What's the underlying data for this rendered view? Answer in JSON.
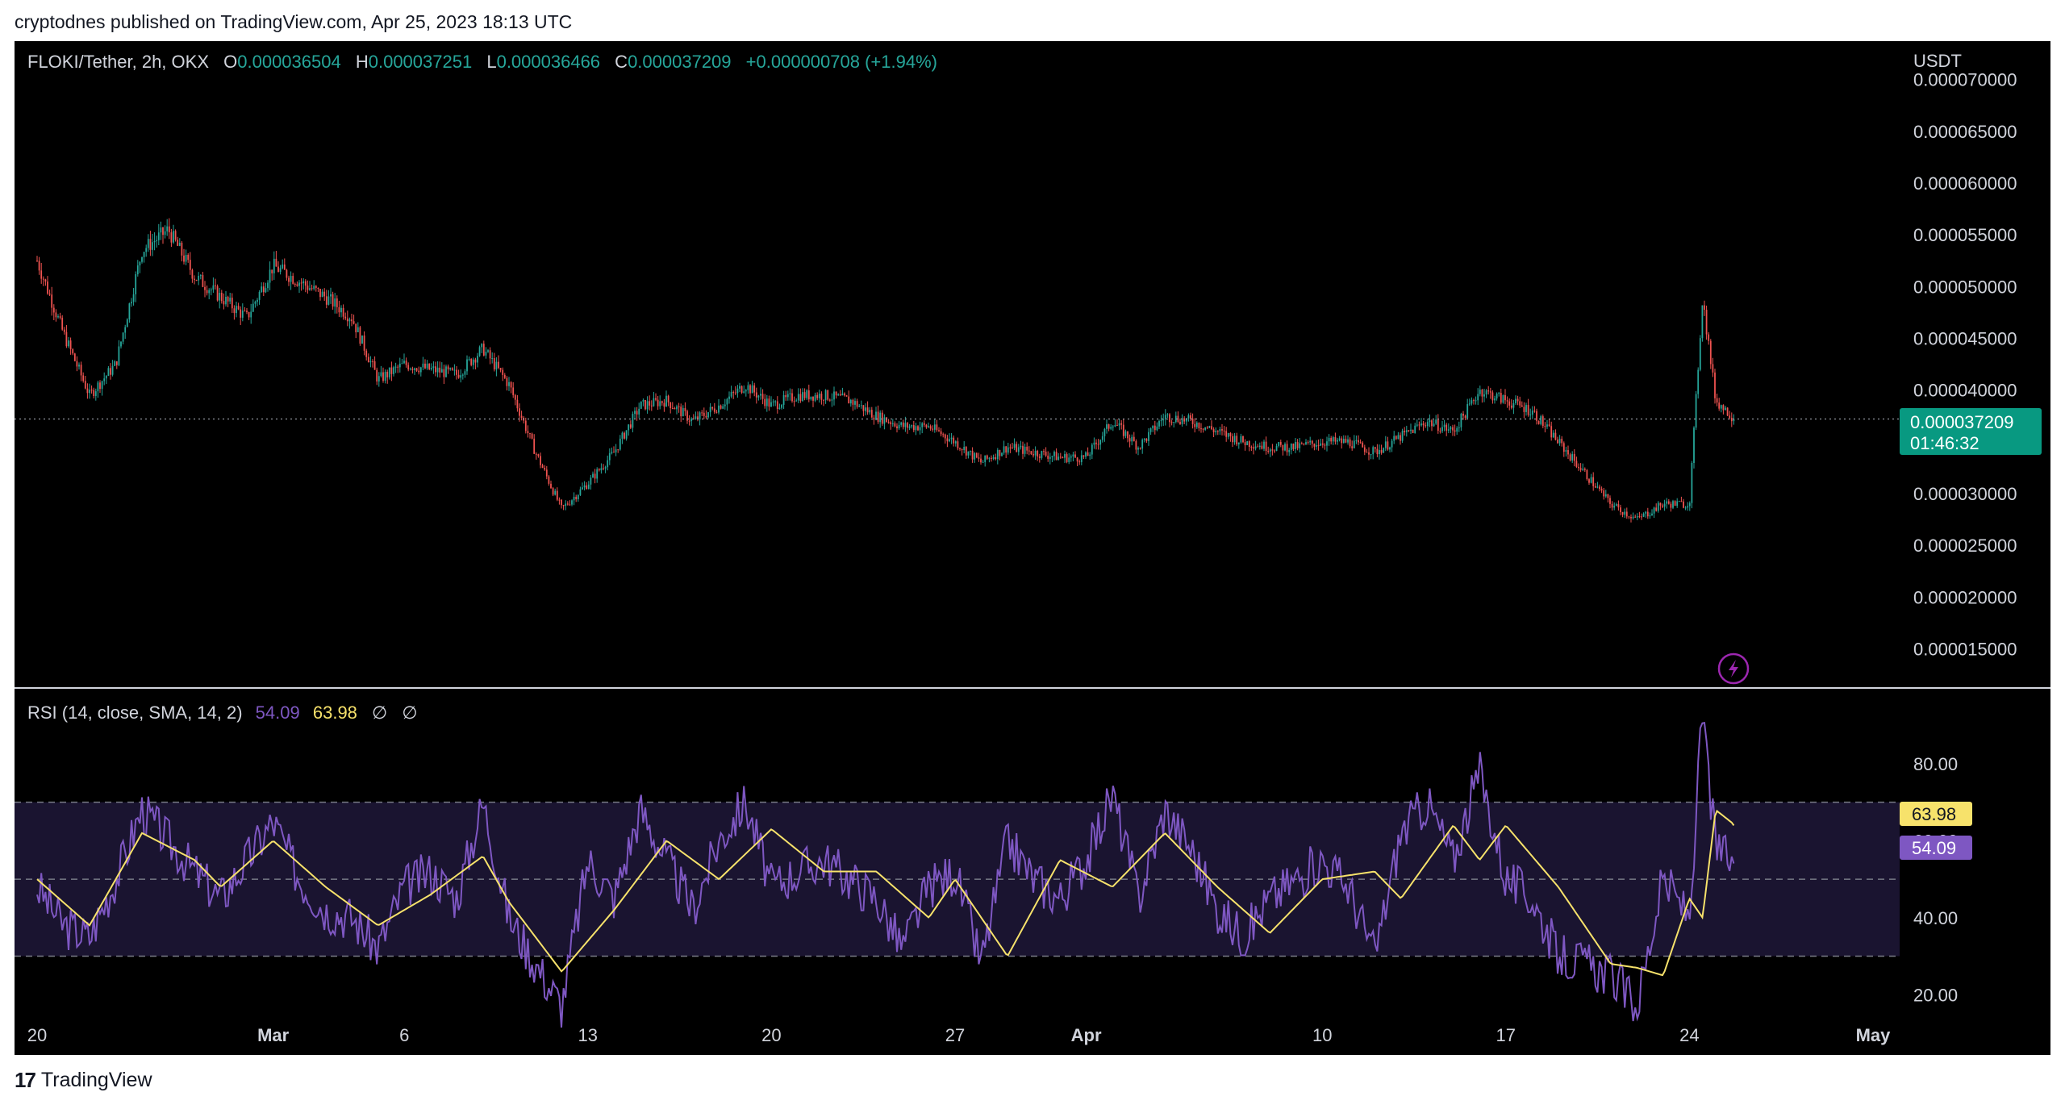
{
  "header": {
    "published_text": "cryptodnes published on TradingView.com, Apr 25, 2023 18:13 UTC"
  },
  "legend": {
    "symbol": "FLOKI/Tether, 2h, OKX",
    "o_label": "O",
    "o_value": "0.000036504",
    "h_label": "H",
    "h_value": "0.000037251",
    "l_label": "L",
    "l_value": "0.000036466",
    "c_label": "C",
    "c_value": "0.000037209",
    "change": "+0.000000708 (+1.94%)"
  },
  "rsi_legend": {
    "label": "RSI (14, close, SMA, 14, 2)",
    "rsi_value": "54.09",
    "sma_value": "63.98",
    "sym1": "∅",
    "sym2": "∅"
  },
  "price_axis": {
    "currency": "USDT",
    "ticks": [
      "0.000070000",
      "0.000065000",
      "0.000060000",
      "0.000055000",
      "0.000050000",
      "0.000045000",
      "0.000040000",
      "0.000030000",
      "0.000025000",
      "0.000020000",
      "0.000015000"
    ],
    "last_price": "0.000037209",
    "countdown": "01:46:32"
  },
  "rsi_axis": {
    "ticks": [
      "80.00",
      "60.00",
      "40.00",
      "20.00"
    ],
    "sma_badge": "63.98",
    "rsi_badge": "54.09"
  },
  "time_axis": {
    "labels": [
      {
        "text": "20",
        "bold": false
      },
      {
        "text": "Mar",
        "bold": true
      },
      {
        "text": "6",
        "bold": false
      },
      {
        "text": "13",
        "bold": false
      },
      {
        "text": "20",
        "bold": false
      },
      {
        "text": "27",
        "bold": false
      },
      {
        "text": "Apr",
        "bold": true
      },
      {
        "text": "10",
        "bold": false
      },
      {
        "text": "17",
        "bold": false
      },
      {
        "text": "24",
        "bold": false
      },
      {
        "text": "May",
        "bold": true
      }
    ]
  },
  "footer": {
    "brand": "TradingView"
  },
  "colors": {
    "up": "#26a69a",
    "down": "#ef5350",
    "rsi": "#7e57c2",
    "sma": "#f7e26b",
    "badge": "#089981"
  },
  "chart_data": [
    {
      "type": "candlestick",
      "title": "FLOKI/Tether, 2h, OKX",
      "ylabel": "USDT",
      "ylim": [
        1.2e-05,
        7.2e-05
      ],
      "x_range": [
        "2023-02-20",
        "2023-05-01"
      ],
      "last_close": 3.7209e-05,
      "path_points": [
        {
          "date": "2023-02-20",
          "price": 5.25e-05
        },
        {
          "date": "2023-02-21",
          "price": 4.55e-05
        },
        {
          "date": "2023-02-22",
          "price": 3.95e-05
        },
        {
          "date": "2023-02-23",
          "price": 4.25e-05
        },
        {
          "date": "2023-02-24",
          "price": 5.35e-05
        },
        {
          "date": "2023-02-25",
          "price": 5.55e-05
        },
        {
          "date": "2023-02-26",
          "price": 5.1e-05
        },
        {
          "date": "2023-02-27",
          "price": 4.9e-05
        },
        {
          "date": "2023-02-28",
          "price": 4.7e-05
        },
        {
          "date": "2023-03-01",
          "price": 5.2e-05
        },
        {
          "date": "2023-03-02",
          "price": 5.05e-05
        },
        {
          "date": "2023-03-03",
          "price": 4.9e-05
        },
        {
          "date": "2023-03-04",
          "price": 4.7e-05
        },
        {
          "date": "2023-03-05",
          "price": 4.1e-05
        },
        {
          "date": "2023-03-06",
          "price": 4.25e-05
        },
        {
          "date": "2023-03-07",
          "price": 4.2e-05
        },
        {
          "date": "2023-03-08",
          "price": 4.15e-05
        },
        {
          "date": "2023-03-09",
          "price": 4.4e-05
        },
        {
          "date": "2023-03-10",
          "price": 4.05e-05
        },
        {
          "date": "2023-03-11",
          "price": 3.4e-05
        },
        {
          "date": "2023-03-12",
          "price": 2.85e-05
        },
        {
          "date": "2023-03-13",
          "price": 3.1e-05
        },
        {
          "date": "2023-03-14",
          "price": 3.4e-05
        },
        {
          "date": "2023-03-15",
          "price": 3.85e-05
        },
        {
          "date": "2023-03-16",
          "price": 3.9e-05
        },
        {
          "date": "2023-03-17",
          "price": 3.7e-05
        },
        {
          "date": "2023-03-18",
          "price": 3.85e-05
        },
        {
          "date": "2023-03-19",
          "price": 4.05e-05
        },
        {
          "date": "2023-03-20",
          "price": 3.85e-05
        },
        {
          "date": "2023-03-21",
          "price": 3.95e-05
        },
        {
          "date": "2023-03-22",
          "price": 3.95e-05
        },
        {
          "date": "2023-03-23",
          "price": 3.9e-05
        },
        {
          "date": "2023-03-24",
          "price": 3.75e-05
        },
        {
          "date": "2023-03-25",
          "price": 3.65e-05
        },
        {
          "date": "2023-03-26",
          "price": 3.65e-05
        },
        {
          "date": "2023-03-27",
          "price": 3.5e-05
        },
        {
          "date": "2023-03-28",
          "price": 3.3e-05
        },
        {
          "date": "2023-03-29",
          "price": 3.45e-05
        },
        {
          "date": "2023-03-30",
          "price": 3.4e-05
        },
        {
          "date": "2023-03-31",
          "price": 3.35e-05
        },
        {
          "date": "2023-04-01",
          "price": 3.35e-05
        },
        {
          "date": "2023-04-02",
          "price": 3.7e-05
        },
        {
          "date": "2023-04-03",
          "price": 3.45e-05
        },
        {
          "date": "2023-04-04",
          "price": 3.75e-05
        },
        {
          "date": "2023-04-05",
          "price": 3.7e-05
        },
        {
          "date": "2023-04-06",
          "price": 3.6e-05
        },
        {
          "date": "2023-04-07",
          "price": 3.5e-05
        },
        {
          "date": "2023-04-08",
          "price": 3.45e-05
        },
        {
          "date": "2023-04-09",
          "price": 3.45e-05
        },
        {
          "date": "2023-04-10",
          "price": 3.5e-05
        },
        {
          "date": "2023-04-11",
          "price": 3.5e-05
        },
        {
          "date": "2023-04-12",
          "price": 3.4e-05
        },
        {
          "date": "2023-04-13",
          "price": 3.55e-05
        },
        {
          "date": "2023-04-14",
          "price": 3.7e-05
        },
        {
          "date": "2023-04-15",
          "price": 3.6e-05
        },
        {
          "date": "2023-04-16",
          "price": 4e-05
        },
        {
          "date": "2023-04-17",
          "price": 3.9e-05
        },
        {
          "date": "2023-04-18",
          "price": 3.8e-05
        },
        {
          "date": "2023-04-19",
          "price": 3.5e-05
        },
        {
          "date": "2023-04-20",
          "price": 3.2e-05
        },
        {
          "date": "2023-04-21",
          "price": 2.9e-05
        },
        {
          "date": "2023-04-22",
          "price": 2.75e-05
        },
        {
          "date": "2023-04-23",
          "price": 2.9e-05
        },
        {
          "date": "2023-04-24",
          "price": 2.9e-05
        },
        {
          "date": "2023-04-24T12:00",
          "price": 4.9e-05
        },
        {
          "date": "2023-04-25",
          "price": 3.9e-05
        },
        {
          "date": "2023-04-25T18:00",
          "price": 3.72e-05
        }
      ]
    },
    {
      "type": "line",
      "title": "RSI (14, close, SMA, 14, 2)",
      "ylim": [
        10,
        98
      ],
      "bands": [
        70,
        50,
        30
      ],
      "series": [
        {
          "name": "RSI",
          "last": 54.09,
          "points": [
            {
              "date": "2023-02-20",
              "v": 48
            },
            {
              "date": "2023-02-21",
              "v": 38
            },
            {
              "date": "2023-02-22",
              "v": 35
            },
            {
              "date": "2023-02-23",
              "v": 50
            },
            {
              "date": "2023-02-24",
              "v": 68
            },
            {
              "date": "2023-02-25",
              "v": 60
            },
            {
              "date": "2023-02-26",
              "v": 52
            },
            {
              "date": "2023-02-27",
              "v": 45
            },
            {
              "date": "2023-02-28",
              "v": 55
            },
            {
              "date": "2023-03-01",
              "v": 65
            },
            {
              "date": "2023-03-02",
              "v": 50
            },
            {
              "date": "2023-03-03",
              "v": 42
            },
            {
              "date": "2023-03-04",
              "v": 40
            },
            {
              "date": "2023-03-05",
              "v": 32
            },
            {
              "date": "2023-03-06",
              "v": 48
            },
            {
              "date": "2023-03-07",
              "v": 52
            },
            {
              "date": "2023-03-08",
              "v": 45
            },
            {
              "date": "2023-03-09",
              "v": 70
            },
            {
              "date": "2023-03-10",
              "v": 40
            },
            {
              "date": "2023-03-11",
              "v": 28
            },
            {
              "date": "2023-03-12",
              "v": 17
            },
            {
              "date": "2023-03-13",
              "v": 55
            },
            {
              "date": "2023-03-14",
              "v": 45
            },
            {
              "date": "2023-03-15",
              "v": 68
            },
            {
              "date": "2023-03-16",
              "v": 55
            },
            {
              "date": "2023-03-17",
              "v": 42
            },
            {
              "date": "2023-03-18",
              "v": 60
            },
            {
              "date": "2023-03-19",
              "v": 70
            },
            {
              "date": "2023-03-20",
              "v": 48
            },
            {
              "date": "2023-03-21",
              "v": 52
            },
            {
              "date": "2023-03-22",
              "v": 55
            },
            {
              "date": "2023-03-23",
              "v": 50
            },
            {
              "date": "2023-03-24",
              "v": 45
            },
            {
              "date": "2023-03-25",
              "v": 32
            },
            {
              "date": "2023-03-26",
              "v": 48
            },
            {
              "date": "2023-03-27",
              "v": 52
            },
            {
              "date": "2023-03-28",
              "v": 28
            },
            {
              "date": "2023-03-29",
              "v": 60
            },
            {
              "date": "2023-03-30",
              "v": 50
            },
            {
              "date": "2023-03-31",
              "v": 45
            },
            {
              "date": "2023-04-01",
              "v": 55
            },
            {
              "date": "2023-04-02",
              "v": 72
            },
            {
              "date": "2023-04-03",
              "v": 45
            },
            {
              "date": "2023-04-04",
              "v": 68
            },
            {
              "date": "2023-04-05",
              "v": 58
            },
            {
              "date": "2023-04-06",
              "v": 42
            },
            {
              "date": "2023-04-07",
              "v": 35
            },
            {
              "date": "2023-04-08",
              "v": 45
            },
            {
              "date": "2023-04-09",
              "v": 50
            },
            {
              "date": "2023-04-10",
              "v": 55
            },
            {
              "date": "2023-04-11",
              "v": 48
            },
            {
              "date": "2023-04-12",
              "v": 30
            },
            {
              "date": "2023-04-13",
              "v": 62
            },
            {
              "date": "2023-04-14",
              "v": 70
            },
            {
              "date": "2023-04-15",
              "v": 55
            },
            {
              "date": "2023-04-16",
              "v": 78
            },
            {
              "date": "2023-04-17",
              "v": 50
            },
            {
              "date": "2023-04-18",
              "v": 45
            },
            {
              "date": "2023-04-19",
              "v": 30
            },
            {
              "date": "2023-04-20",
              "v": 28
            },
            {
              "date": "2023-04-21",
              "v": 25
            },
            {
              "date": "2023-04-22",
              "v": 17
            },
            {
              "date": "2023-04-23",
              "v": 50
            },
            {
              "date": "2023-04-24",
              "v": 40
            },
            {
              "date": "2023-04-24T12:00",
              "v": 93
            },
            {
              "date": "2023-04-25",
              "v": 58
            },
            {
              "date": "2023-04-25T18:00",
              "v": 54.09
            }
          ]
        },
        {
          "name": "SMA",
          "last": 63.98,
          "points": [
            {
              "date": "2023-02-20",
              "v": 50
            },
            {
              "date": "2023-02-22",
              "v": 38
            },
            {
              "date": "2023-02-24",
              "v": 62
            },
            {
              "date": "2023-02-26",
              "v": 55
            },
            {
              "date": "2023-02-27",
              "v": 48
            },
            {
              "date": "2023-03-01",
              "v": 60
            },
            {
              "date": "2023-03-03",
              "v": 48
            },
            {
              "date": "2023-03-05",
              "v": 38
            },
            {
              "date": "2023-03-07",
              "v": 46
            },
            {
              "date": "2023-03-09",
              "v": 56
            },
            {
              "date": "2023-03-10",
              "v": 44
            },
            {
              "date": "2023-03-12",
              "v": 26
            },
            {
              "date": "2023-03-14",
              "v": 42
            },
            {
              "date": "2023-03-16",
              "v": 60
            },
            {
              "date": "2023-03-18",
              "v": 50
            },
            {
              "date": "2023-03-20",
              "v": 63
            },
            {
              "date": "2023-03-22",
              "v": 52
            },
            {
              "date": "2023-03-24",
              "v": 52
            },
            {
              "date": "2023-03-26",
              "v": 40
            },
            {
              "date": "2023-03-27",
              "v": 50
            },
            {
              "date": "2023-03-29",
              "v": 30
            },
            {
              "date": "2023-03-31",
              "v": 55
            },
            {
              "date": "2023-04-02",
              "v": 48
            },
            {
              "date": "2023-04-04",
              "v": 62
            },
            {
              "date": "2023-04-06",
              "v": 48
            },
            {
              "date": "2023-04-08",
              "v": 36
            },
            {
              "date": "2023-04-10",
              "v": 50
            },
            {
              "date": "2023-04-12",
              "v": 52
            },
            {
              "date": "2023-04-13",
              "v": 45
            },
            {
              "date": "2023-04-15",
              "v": 64
            },
            {
              "date": "2023-04-16",
              "v": 55
            },
            {
              "date": "2023-04-17",
              "v": 64
            },
            {
              "date": "2023-04-19",
              "v": 48
            },
            {
              "date": "2023-04-21",
              "v": 28
            },
            {
              "date": "2023-04-22",
              "v": 27
            },
            {
              "date": "2023-04-23",
              "v": 25
            },
            {
              "date": "2023-04-24",
              "v": 45
            },
            {
              "date": "2023-04-24T12:00",
              "v": 40
            },
            {
              "date": "2023-04-25",
              "v": 68
            },
            {
              "date": "2023-04-25T18:00",
              "v": 63.98
            }
          ]
        }
      ]
    }
  ]
}
